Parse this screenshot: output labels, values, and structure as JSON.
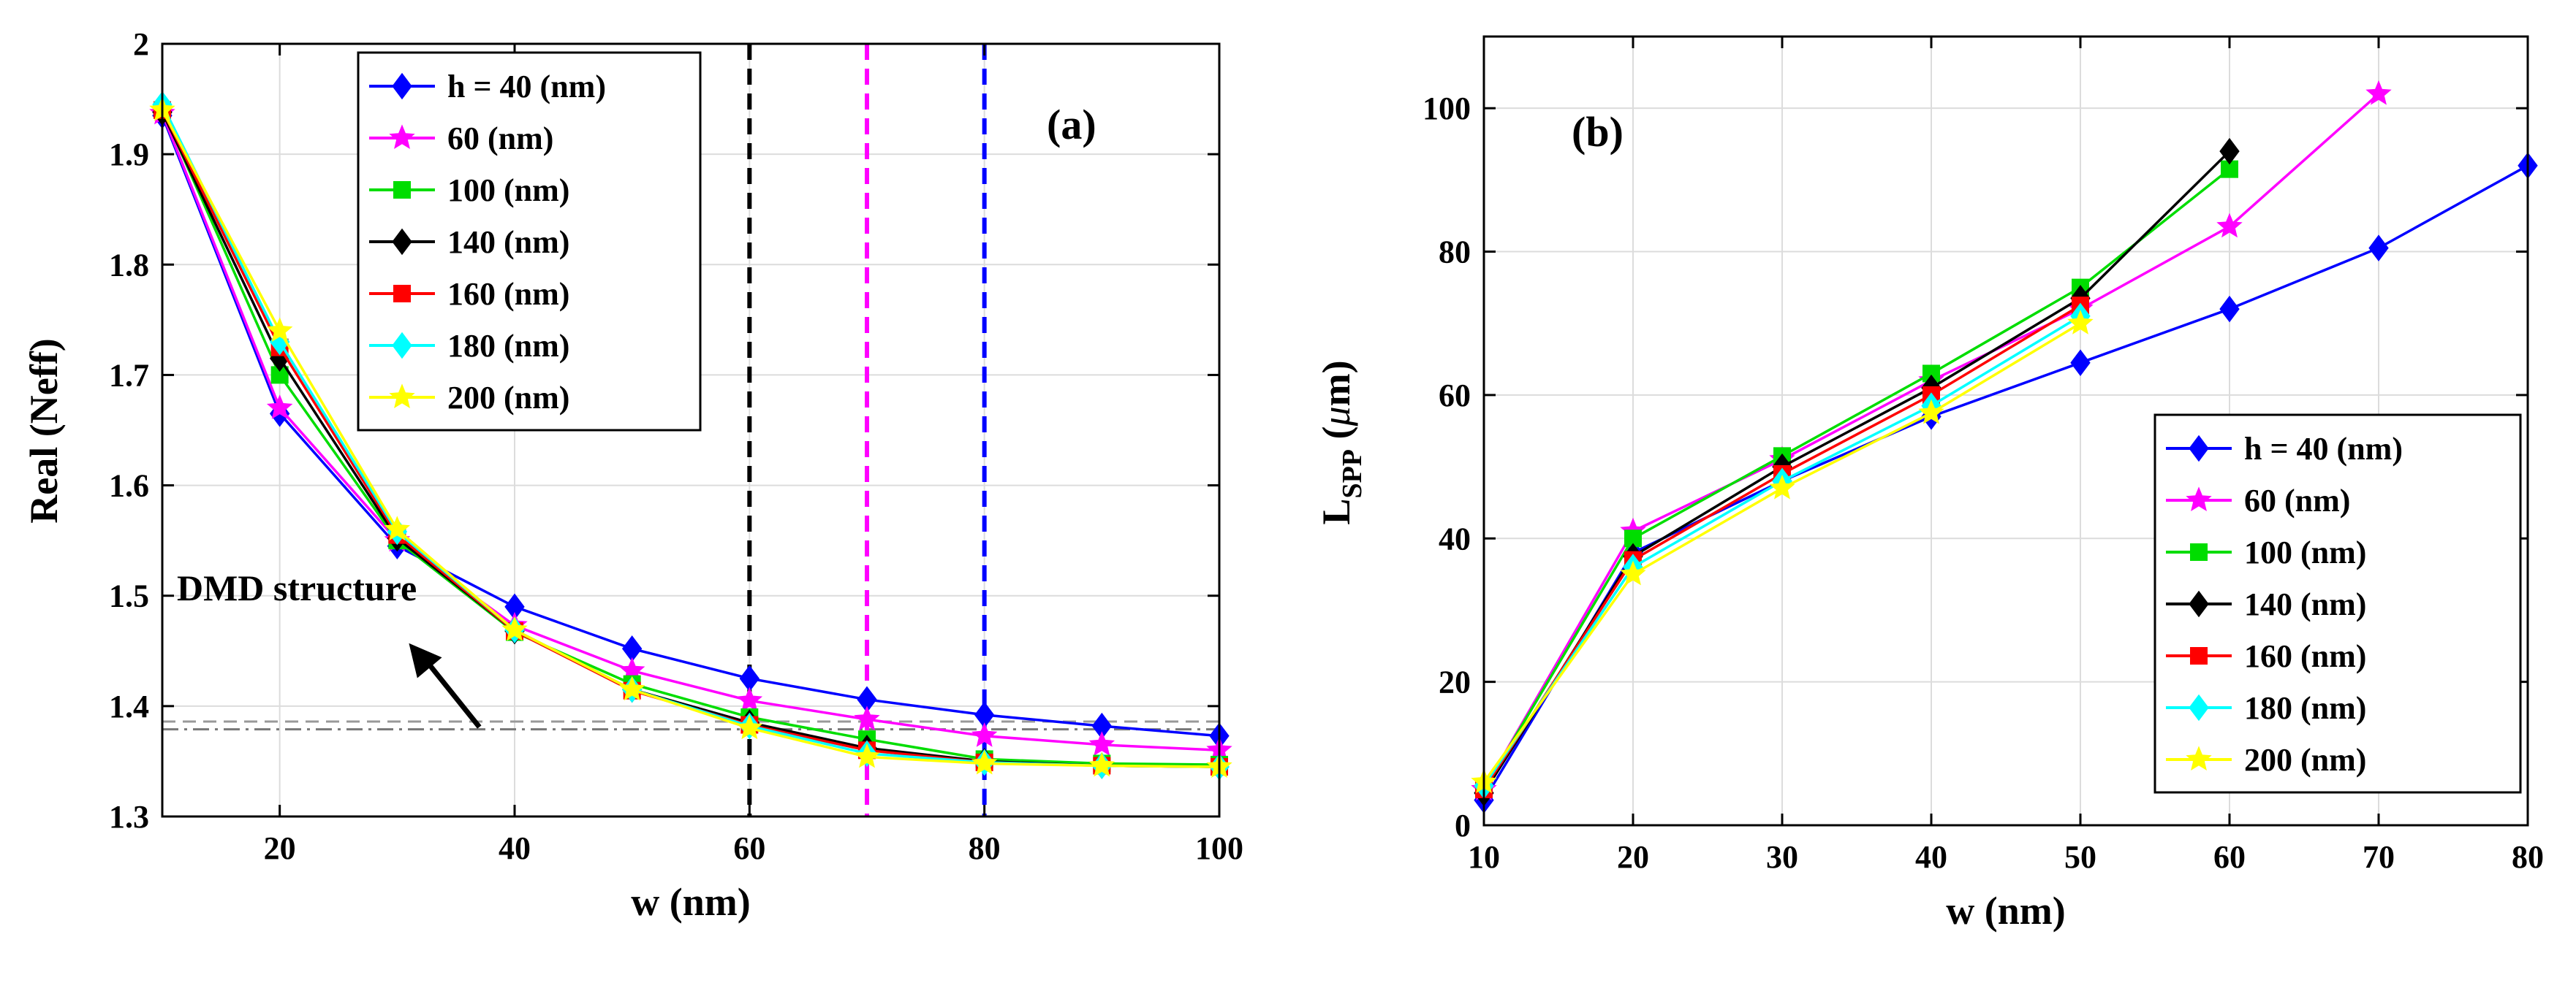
{
  "chart_data": [
    {
      "id": "a",
      "type": "line",
      "panel_label": "(a)",
      "xlabel": "w (nm)",
      "ylabel": "Real (Neff)",
      "xlim": [
        10,
        100
      ],
      "ylim": [
        1.3,
        2.0
      ],
      "xticks": [
        20,
        40,
        60,
        80,
        100
      ],
      "yticks": [
        1.3,
        1.4,
        1.5,
        1.6,
        1.7,
        1.8,
        1.9,
        2.0
      ],
      "ytick_labels": [
        "1.3",
        "1.4",
        "1.5",
        "1.6",
        "1.7",
        "1.8",
        "1.9",
        "2"
      ],
      "grid": true,
      "legend_position": "top-left",
      "x": [
        10,
        20,
        30,
        40,
        50,
        60,
        70,
        80,
        90,
        100
      ],
      "series": [
        {
          "name": "h = 40 (nm)",
          "color": "#0000ff",
          "marker": "diamond",
          "values": [
            1.935,
            1.665,
            1.545,
            1.49,
            1.452,
            1.425,
            1.406,
            1.392,
            1.382,
            1.373
          ]
        },
        {
          "name": "60 (nm)",
          "color": "#ff00ff",
          "marker": "star",
          "values": [
            1.937,
            1.67,
            1.55,
            1.473,
            1.432,
            1.405,
            1.388,
            1.373,
            1.365,
            1.36
          ]
        },
        {
          "name": "100 (nm)",
          "color": "#00dd00",
          "marker": "square",
          "values": [
            1.94,
            1.7,
            1.55,
            1.467,
            1.42,
            1.39,
            1.37,
            1.352,
            1.348,
            1.347
          ]
        },
        {
          "name": "140 (nm)",
          "color": "#000000",
          "marker": "diamond",
          "values": [
            1.938,
            1.715,
            1.552,
            1.468,
            1.415,
            1.385,
            1.362,
            1.35,
            1.346,
            1.345
          ]
        },
        {
          "name": "160 (nm)",
          "color": "#ff0000",
          "marker": "square",
          "values": [
            1.94,
            1.725,
            1.555,
            1.468,
            1.414,
            1.383,
            1.36,
            1.349,
            1.346,
            1.345
          ]
        },
        {
          "name": "180 (nm)",
          "color": "#00ffff",
          "marker": "diamond",
          "values": [
            1.945,
            1.73,
            1.558,
            1.469,
            1.415,
            1.382,
            1.357,
            1.349,
            1.346,
            1.345
          ]
        },
        {
          "name": "200 (nm)",
          "color": "#ffff00",
          "marker": "star",
          "values": [
            1.94,
            1.74,
            1.56,
            1.469,
            1.415,
            1.38,
            1.354,
            1.348,
            1.346,
            1.345
          ]
        }
      ],
      "vlines": [
        {
          "x": 60,
          "color": "#000000",
          "style": "dashed"
        },
        {
          "x": 70,
          "color": "#ff00ff",
          "style": "dashed"
        },
        {
          "x": 80,
          "color": "#0000ff",
          "style": "dashed"
        }
      ],
      "hlines": [
        {
          "y": 1.386,
          "color": "#999999",
          "style": "dashed"
        },
        {
          "y": 1.379,
          "color": "#777777",
          "style": "dashdot"
        }
      ],
      "annotation": {
        "text": "DMD structure",
        "arrow_from": [
          37,
          1.381
        ],
        "arrow_to": [
          31,
          1.457
        ]
      }
    },
    {
      "id": "b",
      "type": "line",
      "panel_label": "(b)",
      "xlabel": "w  (nm)",
      "ylabel_main": "L",
      "ylabel_sub": "SPP",
      "ylabel_unit_open": "  (",
      "ylabel_unit_mu": "μ",
      "ylabel_unit_close": "m)",
      "xlim": [
        10,
        80
      ],
      "ylim": [
        0,
        110
      ],
      "xticks": [
        10,
        20,
        30,
        40,
        50,
        60,
        70,
        80
      ],
      "yticks": [
        0,
        20,
        40,
        60,
        80,
        100
      ],
      "grid": true,
      "legend_position": "bottom-right",
      "series": [
        {
          "name": "h = 40 (nm)",
          "color": "#0000ff",
          "marker": "diamond",
          "x": [
            10,
            20,
            30,
            40,
            50,
            60,
            70,
            80
          ],
          "values": [
            3.5,
            38,
            48,
            57,
            64.5,
            72,
            80.5,
            92
          ]
        },
        {
          "name": "60 (nm)",
          "color": "#ff00ff",
          "marker": "star",
          "x": [
            10,
            20,
            30,
            40,
            50,
            60,
            70
          ],
          "values": [
            5,
            41,
            51,
            62,
            72,
            83.5,
            102
          ]
        },
        {
          "name": "100 (nm)",
          "color": "#00dd00",
          "marker": "square",
          "x": [
            10,
            20,
            30,
            40,
            50,
            60
          ],
          "values": [
            5,
            40,
            51.5,
            63,
            75,
            91.5
          ]
        },
        {
          "name": "140 (nm)",
          "color": "#000000",
          "marker": "diamond",
          "x": [
            10,
            20,
            30,
            40,
            50,
            60
          ],
          "values": [
            4.5,
            37.5,
            50,
            61,
            73.5,
            94
          ]
        },
        {
          "name": "160 (nm)",
          "color": "#ff0000",
          "marker": "square",
          "x": [
            10,
            20,
            30,
            40,
            50
          ],
          "values": [
            5,
            37,
            49,
            60,
            72.5
          ]
        },
        {
          "name": "180 (nm)",
          "color": "#00ffff",
          "marker": "diamond",
          "x": [
            10,
            20,
            30,
            40,
            50
          ],
          "values": [
            5.5,
            36,
            48,
            58.5,
            71
          ]
        },
        {
          "name": "200 (nm)",
          "color": "#ffff00",
          "marker": "star",
          "x": [
            10,
            20,
            30,
            40,
            50
          ],
          "values": [
            6,
            35,
            47,
            57.5,
            70
          ]
        }
      ]
    }
  ]
}
